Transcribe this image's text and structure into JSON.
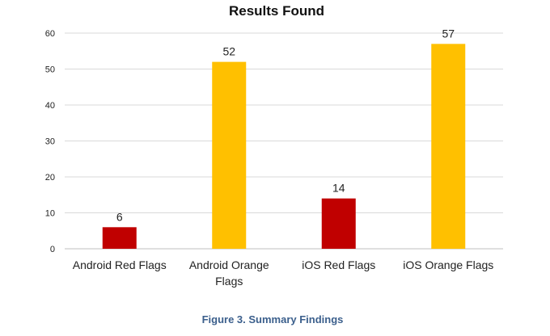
{
  "chart_data": {
    "type": "bar",
    "title": "Results Found",
    "caption": "Figure 3. Summary Findings",
    "categories": [
      "Android Red Flags",
      "Android Orange Flags",
      "iOS Red Flags",
      "iOS Orange Flags"
    ],
    "category_label_lines": [
      [
        "Android Red Flags"
      ],
      [
        "Android Orange",
        "Flags"
      ],
      [
        "iOS Red Flags"
      ],
      [
        "iOS Orange Flags"
      ]
    ],
    "values": [
      6,
      52,
      14,
      57
    ],
    "colors": [
      "#c00000",
      "#ffc000",
      "#c00000",
      "#ffc000"
    ],
    "ylim": [
      0,
      60
    ],
    "yticks": [
      0,
      10,
      20,
      30,
      40,
      50,
      60
    ],
    "grid": true,
    "legend": "none",
    "xlabel": "",
    "ylabel": ""
  }
}
